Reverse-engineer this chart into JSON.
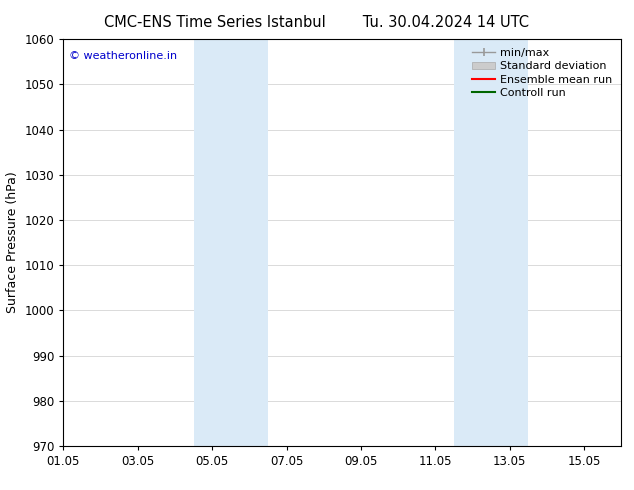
{
  "title_left": "CMC-ENS Time Series Istanbul",
  "title_right": "Tu. 30.04.2024 14 UTC",
  "ylabel": "Surface Pressure (hPa)",
  "ylim": [
    970,
    1060
  ],
  "yticks": [
    970,
    980,
    990,
    1000,
    1010,
    1020,
    1030,
    1040,
    1050,
    1060
  ],
  "xtick_labels": [
    "01.05",
    "03.05",
    "05.05",
    "07.05",
    "09.05",
    "11.05",
    "13.05",
    "15.05"
  ],
  "xtick_positions": [
    0,
    2,
    4,
    6,
    8,
    10,
    12,
    14
  ],
  "xlim": [
    0,
    15
  ],
  "shaded_bands": [
    {
      "x_start": 3.5,
      "x_end": 5.5
    },
    {
      "x_start": 10.5,
      "x_end": 12.5
    }
  ],
  "shaded_color": "#daeaf7",
  "watermark": "© weatheronline.in",
  "watermark_color": "#0000cc",
  "background_color": "#ffffff",
  "grid_color": "#cccccc",
  "title_fontsize": 10.5,
  "tick_label_fontsize": 8.5,
  "ylabel_fontsize": 9,
  "legend_fontsize": 8
}
